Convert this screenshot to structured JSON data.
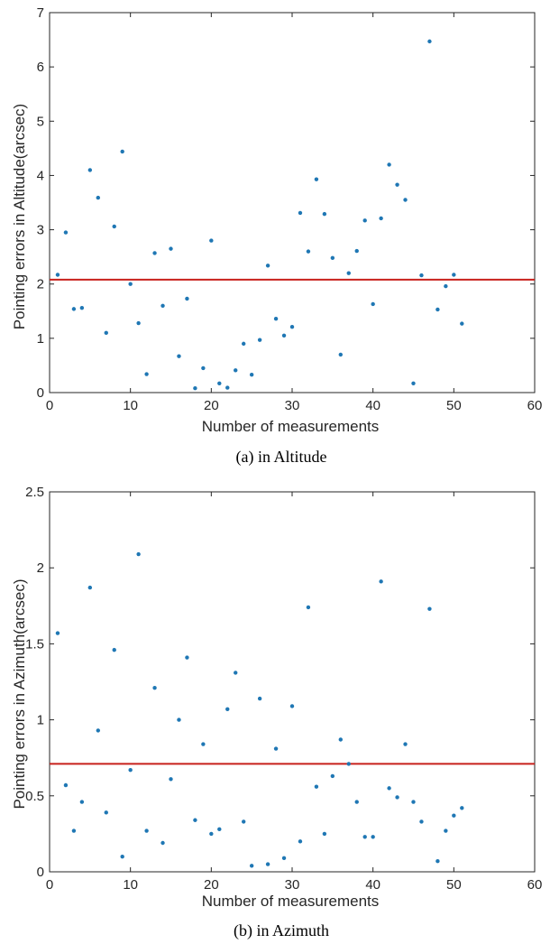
{
  "chart_data": [
    {
      "type": "scatter",
      "caption": "(a) in Altitude",
      "xlabel": "Number of measurements",
      "ylabel": "Pointing errors in Altitude(arcsec)",
      "xlim": [
        0,
        60
      ],
      "ylim": [
        0,
        7
      ],
      "xticks": [
        0,
        10,
        20,
        30,
        40,
        50,
        60
      ],
      "yticks": [
        0,
        1,
        2,
        3,
        4,
        5,
        6,
        7
      ],
      "grid": false,
      "mean_line": 2.08,
      "colors": {
        "points": "#1f77b4",
        "mean_line": "#c8201c",
        "axes": "#262626"
      },
      "x": [
        1,
        2,
        3,
        4,
        5,
        6,
        7,
        8,
        9,
        10,
        11,
        12,
        13,
        14,
        15,
        16,
        17,
        18,
        19,
        20,
        21,
        22,
        23,
        24,
        25,
        26,
        27,
        28,
        29,
        30,
        31,
        32,
        33,
        34,
        35,
        36,
        37,
        38,
        39,
        40,
        41,
        42,
        43,
        44,
        45,
        46,
        47,
        48,
        49,
        50,
        51
      ],
      "y": [
        2.17,
        2.95,
        1.54,
        1.56,
        4.1,
        3.59,
        1.1,
        3.06,
        4.44,
        2.0,
        1.28,
        0.34,
        2.57,
        1.6,
        2.65,
        0.67,
        1.73,
        0.08,
        0.45,
        2.8,
        0.17,
        0.09,
        0.41,
        0.9,
        0.33,
        0.97,
        2.34,
        1.36,
        1.05,
        1.21,
        3.31,
        2.6,
        3.93,
        3.29,
        2.48,
        0.7,
        2.2,
        2.61,
        3.17,
        1.63,
        3.21,
        4.2,
        3.83,
        3.55,
        0.17,
        2.16,
        6.47,
        1.53,
        1.96,
        2.17,
        1.27
      ]
    },
    {
      "type": "scatter",
      "caption": "(b) in Azimuth",
      "xlabel": "Number of measurements",
      "ylabel": "Pointing errors in Azimuth(arcsec)",
      "xlim": [
        0,
        60
      ],
      "ylim": [
        0,
        2.5
      ],
      "xticks": [
        0,
        10,
        20,
        30,
        40,
        50,
        60
      ],
      "yticks": [
        0,
        0.5,
        1,
        1.5,
        2,
        2.5
      ],
      "grid": false,
      "mean_line": 0.71,
      "colors": {
        "points": "#1f77b4",
        "mean_line": "#c8201c",
        "axes": "#262626"
      },
      "x": [
        1,
        2,
        3,
        4,
        5,
        6,
        7,
        8,
        9,
        10,
        11,
        12,
        13,
        14,
        15,
        16,
        17,
        18,
        19,
        20,
        21,
        22,
        23,
        24,
        25,
        26,
        27,
        28,
        29,
        30,
        31,
        32,
        33,
        34,
        35,
        36,
        37,
        38,
        39,
        40,
        41,
        42,
        43,
        44,
        45,
        46,
        47,
        48,
        49,
        50,
        51
      ],
      "y": [
        1.57,
        0.57,
        0.27,
        0.46,
        1.87,
        0.93,
        0.39,
        1.46,
        0.1,
        0.67,
        2.09,
        0.27,
        1.21,
        0.19,
        0.61,
        1.0,
        1.41,
        0.34,
        0.84,
        0.25,
        0.28,
        1.07,
        1.31,
        0.33,
        0.04,
        1.14,
        0.05,
        0.81,
        0.09,
        1.09,
        0.2,
        1.74,
        0.56,
        0.25,
        0.63,
        0.87,
        0.71,
        0.46,
        0.23,
        0.23,
        1.91,
        0.55,
        0.49,
        0.84,
        0.46,
        0.33,
        1.73,
        0.07,
        0.27,
        0.37,
        0.42
      ]
    }
  ]
}
